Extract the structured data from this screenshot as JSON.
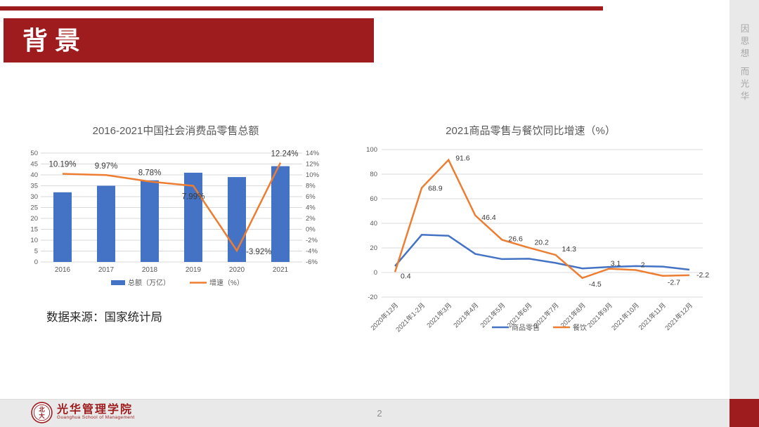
{
  "slide": {
    "section_title": "背景",
    "side_slogan": "因思想 而光华",
    "data_source": "数据来源：国家统计局",
    "page_number": "2",
    "logo": {
      "cn": "光华管理学院",
      "en": "Guanghua School of Management",
      "seal": "peking-university-seal"
    },
    "colors": {
      "accent_red": "#9e1b1e",
      "bar_blue": "#4472c4",
      "line_orange": "#ed7d31",
      "line_blue": "#4472c4",
      "grid_gray": "#d9d9d9",
      "axis_text_gray": "#595959",
      "band_gray": "#e9e9e9",
      "data_label_dark": "#3a3a3a"
    }
  },
  "chart_data": [
    {
      "type": "bar",
      "subtype": "combo-bar-line-dual-axis",
      "title": "2016-2021中国社会消费品零售总额",
      "categories": [
        "2016",
        "2017",
        "2018",
        "2019",
        "2020",
        "2021"
      ],
      "series": [
        {
          "name": "总额（万亿）",
          "kind": "bar",
          "axis": "left",
          "color": "#4472c4",
          "values": [
            32,
            35,
            37.5,
            41,
            39,
            44
          ]
        },
        {
          "name": "增速（%）",
          "kind": "line",
          "axis": "right",
          "color": "#ed7d31",
          "values": [
            10.19,
            9.97,
            8.78,
            7.99,
            -3.92,
            12.24
          ],
          "point_labels": [
            "10.19%",
            "9.97%",
            "8.78%",
            "7.99%",
            "-3.92%",
            "12.24%"
          ],
          "label_offsets": [
            [
              0,
              -10,
              "middle"
            ],
            [
              0,
              -9,
              "middle"
            ],
            [
              0,
              -9,
              "middle"
            ],
            [
              0,
              19,
              "middle"
            ],
            [
              13,
              5,
              "start"
            ],
            [
              6,
              -9,
              "middle"
            ]
          ]
        }
      ],
      "left_axis": {
        "min": 0,
        "max": 50,
        "step": 5,
        "ticks": [
          "0",
          "5",
          "10",
          "15",
          "20",
          "25",
          "30",
          "35",
          "40",
          "45",
          "50"
        ]
      },
      "right_axis": {
        "min": -6,
        "max": 14,
        "step": 2,
        "ticks": [
          "-6%",
          "-4%",
          "-2%",
          "0%",
          "2%",
          "4%",
          "6%",
          "8%",
          "10%",
          "12%",
          "14%"
        ]
      },
      "grid": true,
      "legend_position": "bottom"
    },
    {
      "type": "line",
      "title": "2021商品零售与餐饮同比增速（%）",
      "categories": [
        "2020年12月",
        "2021年1-2月",
        "2021年3月",
        "2021年4月",
        "2021年5月",
        "2021年6月",
        "2021年7月",
        "2021年8月",
        "2021年9月",
        "2021年10月",
        "2021年11月",
        "2021年12月"
      ],
      "series": [
        {
          "name": "商品零售",
          "kind": "line",
          "color": "#4472c4",
          "values": [
            5.2,
            30.7,
            29.9,
            15.1,
            10.9,
            11.2,
            7.8,
            3.3,
            4.5,
            5.2,
            4.8,
            2.3
          ]
        },
        {
          "name": "餐饮",
          "kind": "line",
          "color": "#ed7d31",
          "values": [
            0.4,
            68.9,
            91.6,
            46.4,
            26.6,
            20.2,
            14.3,
            -4.5,
            3.1,
            2,
            -2.7,
            -2.2
          ],
          "point_labels": [
            "0.4",
            "68.9",
            "91.6",
            "46.4",
            "26.6",
            "20.2",
            "14.3",
            "-4.5",
            "3.1",
            "2",
            "-2.7",
            "-2.2"
          ],
          "label_offsets": [
            [
              8,
              9,
              "start"
            ],
            [
              9,
              4,
              "start"
            ],
            [
              10,
              1,
              "start"
            ],
            [
              9,
              6,
              "start"
            ],
            [
              9,
              2,
              "start"
            ],
            [
              8,
              -4,
              "start"
            ],
            [
              9,
              -5,
              "start"
            ],
            [
              9,
              12,
              "start"
            ],
            [
              2,
              -4,
              "start"
            ],
            [
              7,
              -4,
              "start"
            ],
            [
              7,
              13,
              "start"
            ],
            [
              10,
              3,
              "start"
            ]
          ]
        }
      ],
      "y_axis": {
        "min": -20,
        "max": 100,
        "step": 20,
        "ticks": [
          "-20",
          "0",
          "20",
          "40",
          "60",
          "80",
          "100"
        ]
      },
      "grid": true,
      "legend_position": "bottom"
    }
  ]
}
